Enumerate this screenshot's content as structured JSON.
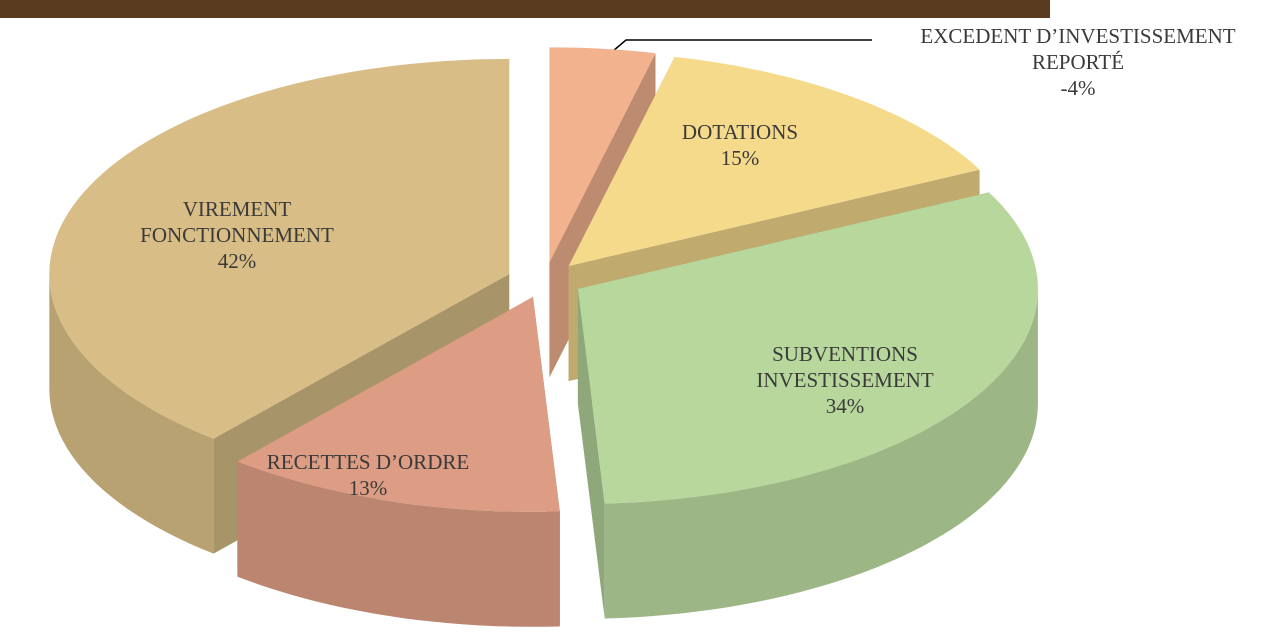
{
  "chart_data": {
    "type": "pie",
    "categories": [
      "EXCEDENT D’INVESTISSEMENT REPORTÉ",
      "DOTATIONS",
      "SUBVENTIONS INVESTISSEMENT",
      "RECETTES D’ORDRE",
      "VIREMENT FONCTIONNEMENT"
    ],
    "values": [
      -4,
      15,
      34,
      13,
      42
    ],
    "value_labels": [
      "-4%",
      "15%",
      "34%",
      "13%",
      "42%"
    ],
    "colors": [
      "#f2b28e",
      "#f6da8c",
      "#b7d79c",
      "#dc9d84",
      "#d8be86"
    ]
  }
}
